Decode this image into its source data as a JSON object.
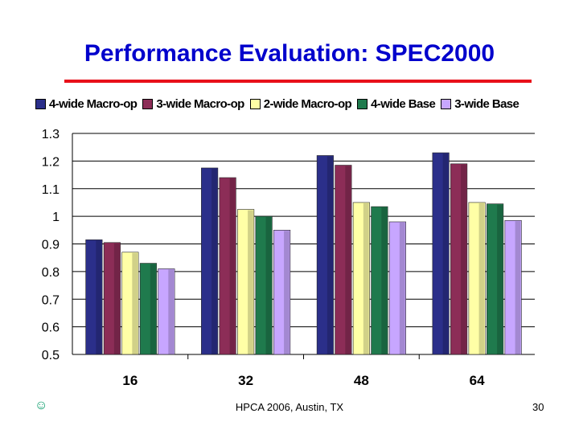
{
  "slide": {
    "title": "Performance Evaluation: SPEC2000",
    "footer_left": "☺",
    "footer_center": "HPCA 2006, Austin, TX",
    "page_number": "30",
    "title_color": "#0000cc",
    "rule_color": "#e8101a"
  },
  "chart_data": {
    "type": "bar",
    "title": "",
    "xlabel": "",
    "ylabel": "",
    "ylim": [
      0.5,
      1.3
    ],
    "yticks": [
      "0.5",
      "0.6",
      "0.7",
      "0.8",
      "0.9",
      "1",
      "1.1",
      "1.2",
      "1.3"
    ],
    "categories": [
      "16",
      "32",
      "48",
      "64"
    ],
    "legend_position": "top",
    "grid": true,
    "series": [
      {
        "name": "4-wide Macro-op",
        "color": "#2b2f8a",
        "values": [
          0.915,
          1.175,
          1.22,
          1.23
        ]
      },
      {
        "name": "3-wide Macro-op",
        "color": "#8c2d57",
        "values": [
          0.905,
          1.14,
          1.185,
          1.19
        ]
      },
      {
        "name": "2-wide Macro-op",
        "color": "#ffffa6",
        "values": [
          0.87,
          1.025,
          1.05,
          1.05
        ]
      },
      {
        "name": "4-wide Base",
        "color": "#1f7a4d",
        "values": [
          0.83,
          1.0,
          1.035,
          1.045
        ]
      },
      {
        "name": "3-wide Base",
        "color": "#c7a6ff",
        "values": [
          0.81,
          0.95,
          0.98,
          0.985
        ]
      }
    ]
  }
}
